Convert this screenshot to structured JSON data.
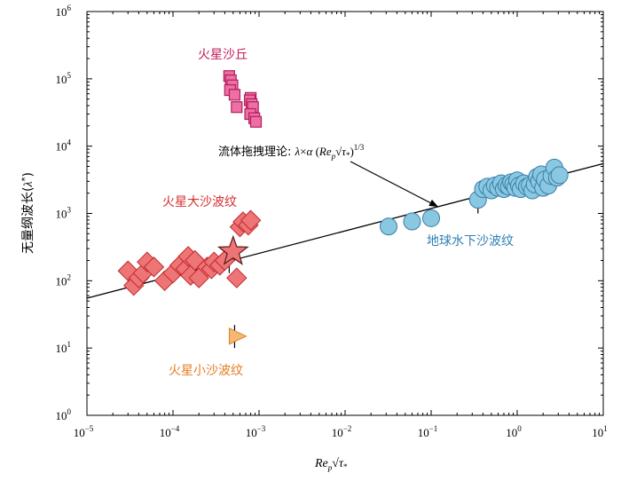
{
  "chart_data": {
    "type": "scatter",
    "x_scale": "log",
    "y_scale": "log",
    "xlim": [
      1e-05,
      10
    ],
    "ylim": [
      1,
      1000000
    ],
    "x_ticks": [
      {
        "value": 1e-05,
        "base": "10",
        "exp": "−5"
      },
      {
        "value": 0.0001,
        "base": "10",
        "exp": "−4"
      },
      {
        "value": 0.001,
        "base": "10",
        "exp": "−3"
      },
      {
        "value": 0.01,
        "base": "10",
        "exp": "−2"
      },
      {
        "value": 0.1,
        "base": "10",
        "exp": "−1"
      },
      {
        "value": 1,
        "base": "10",
        "exp": "0"
      },
      {
        "value": 10,
        "base": "10",
        "exp": "1"
      }
    ],
    "y_ticks": [
      {
        "value": 1,
        "base": "10",
        "exp": "0"
      },
      {
        "value": 10,
        "base": "10",
        "exp": "1"
      },
      {
        "value": 100,
        "base": "10",
        "exp": "2"
      },
      {
        "value": 1000,
        "base": "10",
        "exp": "3"
      },
      {
        "value": 10000,
        "base": "10",
        "exp": "4"
      },
      {
        "value": 100000,
        "base": "10",
        "exp": "5"
      },
      {
        "value": 1000000,
        "base": "10",
        "exp": "6"
      }
    ],
    "xlabel": "Re_p√τ*",
    "ylabel": "无量纲波长(λ*)",
    "fit_line": {
      "x": [
        1e-05,
        10
      ],
      "y": [
        55,
        5500
      ],
      "annotation": "流体拖拽理论: λ×α (Re_p√τ*)^1/3"
    },
    "series": [
      {
        "name": "火星沙丘",
        "marker": "square",
        "fill": "#ee6fa2",
        "stroke": "#b01f5f",
        "points": [
          [
            0.00045,
            110000
          ],
          [
            0.00047,
            95000
          ],
          [
            0.00049,
            80000
          ],
          [
            0.00046,
            68000
          ],
          [
            0.00052,
            58000
          ],
          [
            0.0008,
            52000
          ],
          [
            0.00078,
            48000
          ],
          [
            0.00082,
            42000
          ],
          [
            0.00085,
            38000
          ],
          [
            0.00055,
            38000
          ],
          [
            0.00079,
            30000
          ],
          [
            0.00088,
            26000
          ],
          [
            0.00092,
            23000
          ]
        ]
      },
      {
        "name": "火星大沙波纹",
        "marker": "diamond",
        "fill": "#ee7575",
        "stroke": "#c0282d",
        "points": [
          [
            3e-05,
            140.0
          ],
          [
            3.5e-05,
            85
          ],
          [
            4e-05,
            110
          ],
          [
            4.5e-05,
            130
          ],
          [
            5e-05,
            190
          ],
          [
            6e-05,
            160
          ],
          [
            8e-05,
            100
          ],
          [
            0.0001,
            130
          ],
          [
            0.00012,
            170
          ],
          [
            0.00014,
            150
          ],
          [
            0.00015,
            230
          ],
          [
            0.00016,
            120
          ],
          [
            0.00018,
            200
          ],
          [
            0.0002,
            110
          ],
          [
            0.00025,
            160
          ],
          [
            0.00028,
            150
          ],
          [
            0.0003,
            190
          ],
          [
            0.00035,
            170
          ],
          [
            0.0004,
            200
          ],
          [
            0.00055,
            110
          ],
          [
            0.0006,
            630
          ],
          [
            0.00065,
            750
          ],
          [
            0.00075,
            670
          ],
          [
            0.0008,
            790
          ]
        ]
      },
      {
        "name": "火星小沙波纹",
        "marker": "triangle-right",
        "fill": "#f5b872",
        "stroke": "#d9822b",
        "points": [
          [
            0.00052,
            15
          ]
        ]
      },
      {
        "name": "地球水下沙波纹",
        "marker": "circle",
        "fill": "#8ac7e1",
        "stroke": "#3a7fa8",
        "points": [
          [
            0.032,
            640
          ],
          [
            0.06,
            760
          ],
          [
            0.1,
            850
          ],
          [
            0.35,
            1600
          ],
          [
            0.4,
            2300
          ],
          [
            0.45,
            2500
          ],
          [
            0.5,
            2200
          ],
          [
            0.55,
            2600
          ],
          [
            0.6,
            2400
          ],
          [
            0.65,
            2800
          ],
          [
            0.7,
            2300
          ],
          [
            0.75,
            2600
          ],
          [
            0.8,
            2500
          ],
          [
            0.85,
            2900
          ],
          [
            0.9,
            2700
          ],
          [
            0.95,
            2400
          ],
          [
            1.0,
            3100
          ],
          [
            1.05,
            2600
          ],
          [
            1.1,
            2300
          ],
          [
            1.2,
            2800
          ],
          [
            1.3,
            2500
          ],
          [
            1.4,
            2600
          ],
          [
            1.5,
            2200
          ],
          [
            1.6,
            2700
          ],
          [
            1.7,
            3500
          ],
          [
            1.8,
            3000
          ],
          [
            1.9,
            3800
          ],
          [
            2.0,
            2400
          ],
          [
            2.1,
            3200
          ],
          [
            2.3,
            2600
          ],
          [
            2.5,
            3600
          ],
          [
            2.7,
            4800
          ],
          [
            2.9,
            3400
          ],
          [
            3.1,
            3700
          ]
        ]
      }
    ],
    "star_marker": {
      "x": 0.0005,
      "y": 270,
      "fill": "#ee7575",
      "stroke": "#5a1a1a"
    },
    "error_bars": [
      {
        "x": 0.00045,
        "y_low": 130,
        "y_high": 200
      },
      {
        "x": 0.00052,
        "y_low": 10,
        "y_high": 22
      },
      {
        "x": 0.35,
        "y_low": 1000,
        "y_high": 2500
      }
    ],
    "labels": {
      "mars_dunes": "火星沙丘",
      "mars_large_ripples": "火星大沙波纹",
      "mars_small_ripples": "火星小沙波纹",
      "earth_subaqueous_ripples": "地球水下沙波纹"
    },
    "label_colors": {
      "mars_dunes": "#c2185b",
      "mars_large_ripples": "#d32f2f",
      "mars_small_ripples": "#e67e22",
      "earth_subaqueous_ripples": "#2f7fb5"
    }
  }
}
